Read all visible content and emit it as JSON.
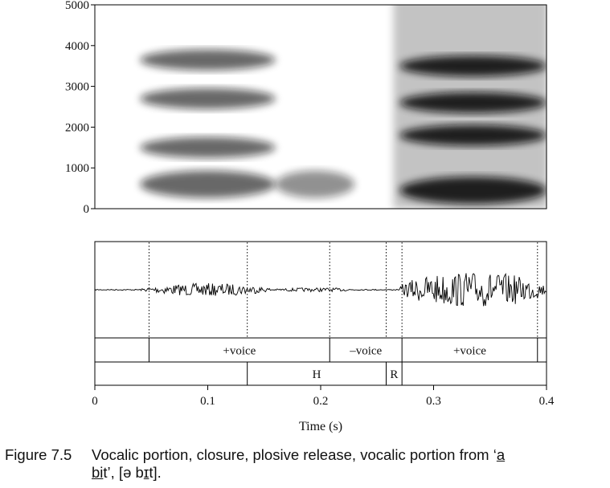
{
  "chart_data": [
    {
      "type": "heatmap",
      "ylim": [
        0,
        5000
      ],
      "y_ticks": [
        "0",
        "1000",
        "2000",
        "3000",
        "4000",
        "5000"
      ],
      "x_domain_s": [
        0,
        0.4
      ],
      "energy_regions": [
        {
          "t_start": 0.04,
          "t_end": 0.16,
          "formants_hz": [
            600,
            1500,
            2700,
            3650
          ],
          "level": "medium"
        },
        {
          "t_start": 0.16,
          "t_end": 0.23,
          "formants_hz": [
            600
          ],
          "level": "weak"
        },
        {
          "t_start": 0.23,
          "t_end": 0.26,
          "formants_hz": [],
          "level": "silence"
        },
        {
          "t_start": 0.27,
          "t_end": 0.4,
          "formants_hz": [
            450,
            1800,
            2600,
            3500
          ],
          "level": "strong"
        }
      ]
    },
    {
      "type": "line",
      "xlim": [
        0,
        0.4
      ],
      "x_ticks": [
        "0",
        "0.1",
        "0.2",
        "0.3",
        "0.4"
      ],
      "xlabel": "Time (s)",
      "dotted_boundaries_s": [
        0.048,
        0.135,
        0.208,
        0.258,
        0.272,
        0.392
      ],
      "tiers": [
        {
          "name": "voicing",
          "intervals": [
            {
              "start": 0.0,
              "end": 0.048,
              "label": ""
            },
            {
              "start": 0.048,
              "end": 0.208,
              "label": "+voice"
            },
            {
              "start": 0.208,
              "end": 0.272,
              "label": "–voice"
            },
            {
              "start": 0.272,
              "end": 0.392,
              "label": "+voice"
            },
            {
              "start": 0.392,
              "end": 0.4,
              "label": ""
            }
          ]
        },
        {
          "name": "events",
          "intervals": [
            {
              "start": 0.0,
              "end": 0.135,
              "label": ""
            },
            {
              "start": 0.135,
              "end": 0.258,
              "label": "H"
            },
            {
              "start": 0.258,
              "end": 0.272,
              "label": "R"
            },
            {
              "start": 0.272,
              "end": 0.4,
              "label": ""
            }
          ]
        }
      ]
    }
  ],
  "caption": {
    "number": "Figure 7.5",
    "text_1": "Vocalic portion, closure, plosive release, vocalic portion from ‘",
    "u_a": "a",
    "text_2": "",
    "u_bi": "bi",
    "text_3": "t’, [",
    "ipa_1": "ə b",
    "ipa_u": "ɪ",
    "ipa_2": "t",
    "text_4": "]."
  }
}
